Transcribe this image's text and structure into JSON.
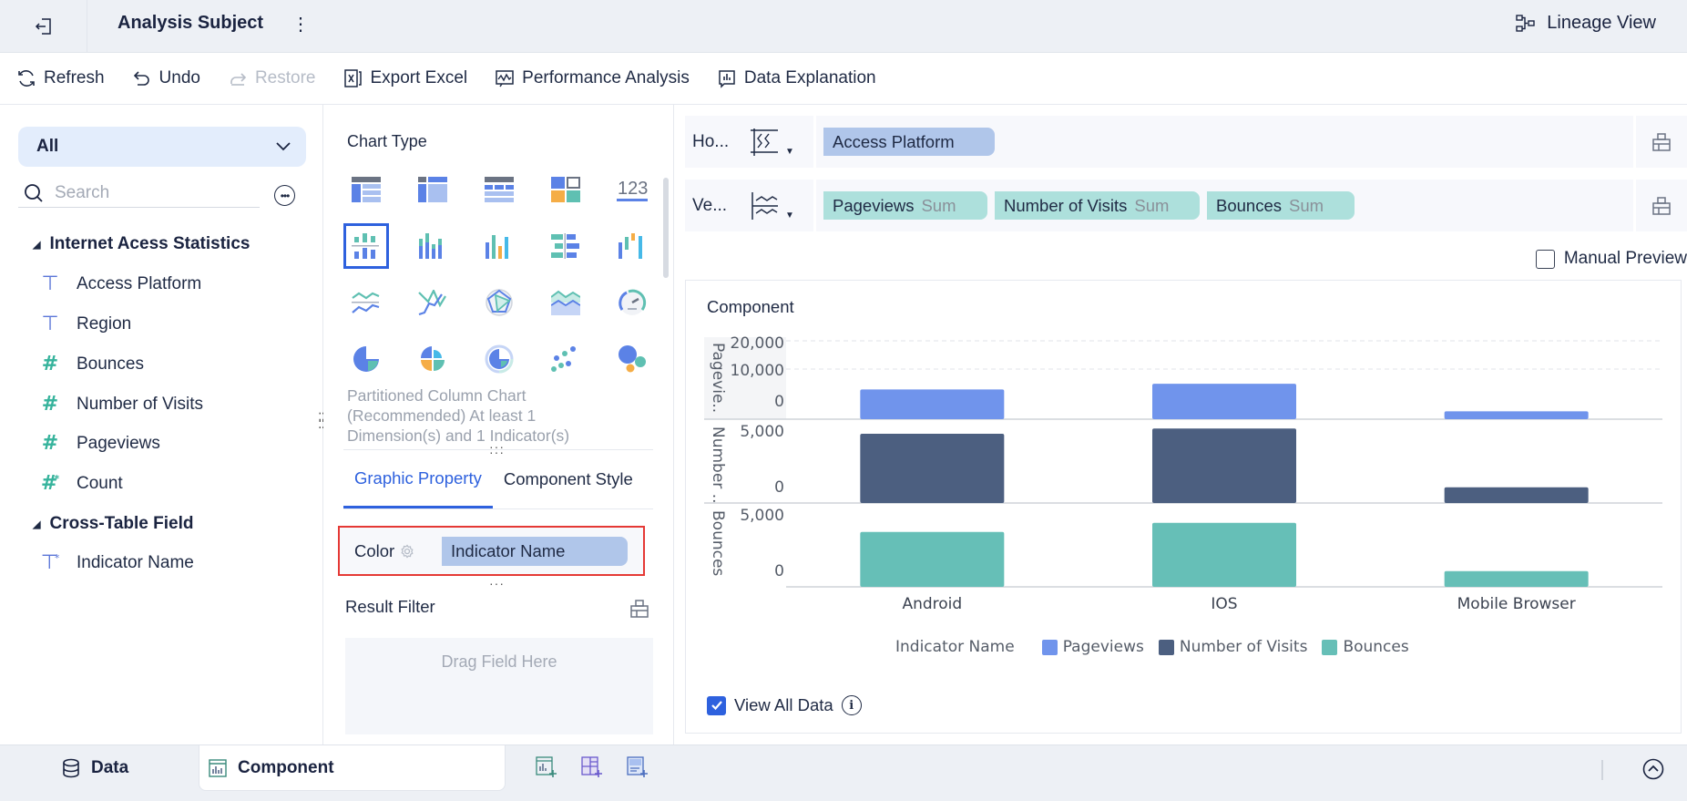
{
  "header": {
    "title": "Analysis Subject",
    "lineage_view": "Lineage View"
  },
  "toolbar": {
    "refresh": "Refresh",
    "undo": "Undo",
    "restore": "Restore",
    "export_excel": "Export Excel",
    "performance_analysis": "Performance Analysis",
    "data_explanation": "Data Explanation"
  },
  "left_panel": {
    "scope_select": "All",
    "search_placeholder": "Search",
    "groups": [
      {
        "name": "Internet Acess Statistics",
        "fields": [
          {
            "label": "Access Platform",
            "type": "dimension"
          },
          {
            "label": "Region",
            "type": "dimension"
          },
          {
            "label": "Bounces",
            "type": "measure"
          },
          {
            "label": "Number of Visits",
            "type": "measure"
          },
          {
            "label": "Pageviews",
            "type": "measure"
          },
          {
            "label": "Count",
            "type": "calculated-measure"
          }
        ]
      },
      {
        "name": "Cross-Table Field",
        "fields": [
          {
            "label": "Indicator Name",
            "type": "calculated-dimension"
          }
        ]
      }
    ]
  },
  "middle_panel": {
    "chart_type_label": "Chart Type",
    "chart_types": [
      "detail-table-icon",
      "cross-table-icon",
      "grouped-table-icon",
      "card-layout-icon",
      "kpi-number-icon",
      "partitioned-column-icon",
      "multi-series-column-icon",
      "column-chart-icon",
      "bar-comparison-icon",
      "waterfall-icon",
      "line-chart-icon",
      "multi-line-icon",
      "radar-chart-icon",
      "area-chart-icon",
      "gauge-icon",
      "pie-chart-icon",
      "rose-chart-icon",
      "donut-chart-icon",
      "scatter-chart-icon",
      "bubble-chart-icon"
    ],
    "selected_index": 5,
    "chart_description": "Partitioned Column Chart (Recommended) At least 1 Dimension(s) and 1 Indicator(s)",
    "tabs": [
      "Graphic Property",
      "Component Style"
    ],
    "active_tab": "Graphic Property",
    "color_label": "Color",
    "color_field": "Indicator Name",
    "result_filter_label": "Result Filter",
    "drop_placeholder": "Drag Field Here"
  },
  "shelves": {
    "horizontal_label": "Ho...",
    "vertical_label": "Ve...",
    "horizontal_fields": [
      {
        "name": "Access Platform"
      }
    ],
    "vertical_fields": [
      {
        "name": "Pageviews",
        "agg": "Sum"
      },
      {
        "name": "Number of Visits",
        "agg": "Sum"
      },
      {
        "name": "Bounces",
        "agg": "Sum"
      }
    ]
  },
  "manual_preview": "Manual Preview",
  "chart_card": {
    "title": "Component",
    "view_all_data": "View All Data"
  },
  "chart_data": {
    "type": "bar",
    "title": "Component",
    "categories": [
      "Android",
      "IOS",
      "Mobile Browser"
    ],
    "series": [
      {
        "name": "Pageviews",
        "color": "#7094ec",
        "values": [
          9500,
          11300,
          2500
        ],
        "ylim": [
          0,
          25000
        ],
        "ticks": [
          "20,000",
          "10,000",
          "0"
        ],
        "axis_label": "Pagevie.."
      },
      {
        "name": "Number of Visits",
        "color": "#4c5f80",
        "values": [
          5300,
          5700,
          1200
        ],
        "ylim": [
          0,
          6000
        ],
        "ticks": [
          "5,000",
          "0"
        ],
        "axis_label": "Number .."
      },
      {
        "name": "Bounces",
        "color": "#66bfb7",
        "values": [
          4200,
          4900,
          1200
        ],
        "ylim": [
          0,
          6000
        ],
        "ticks": [
          "5,000",
          "0"
        ],
        "axis_label": "Bounces"
      }
    ],
    "legend_title": "Indicator Name",
    "legend_position": "bottom",
    "grid": true
  },
  "bottom_bar": {
    "data_tab": "Data",
    "component_tab": "Component"
  }
}
